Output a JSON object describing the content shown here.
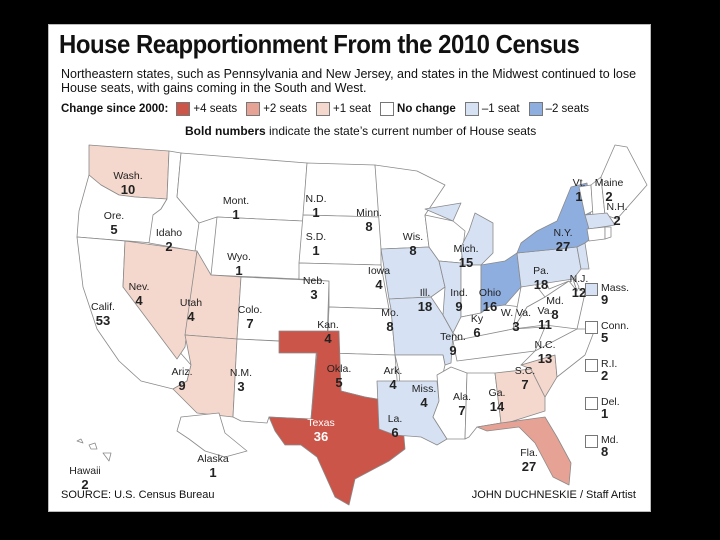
{
  "title": "House Reapportionment From the 2010 Census",
  "subtitle": "Northeastern states, such as Pennsylvania and New Jersey, and states in the Midwest continued to lose House seats, with gains coming in the South and West.",
  "legend": {
    "label": "Change since 2000:",
    "items": [
      {
        "label": "+4 seats",
        "color": "#cc5549"
      },
      {
        "label": "+2 seats",
        "color": "#e6a294"
      },
      {
        "label": "+1 seat",
        "color": "#f5d8cd"
      },
      {
        "label": "No change",
        "color": "#ffffff"
      },
      {
        "label": "–1 seat",
        "color": "#d6e2f3"
      },
      {
        "label": "–2 seats",
        "color": "#8eaee0"
      }
    ]
  },
  "bold_note": {
    "bold": "Bold numbers",
    "rest": " indicate the state’s current number of House seats"
  },
  "states": {
    "wa": {
      "name": "Wash.",
      "seats": "10",
      "change": "+1"
    },
    "or": {
      "name": "Ore.",
      "seats": "5",
      "change": "0"
    },
    "ca": {
      "name": "Calif.",
      "seats": "53",
      "change": "0"
    },
    "nv": {
      "name": "Nev.",
      "seats": "4",
      "change": "+1"
    },
    "id": {
      "name": "Idaho",
      "seats": "2",
      "change": "0"
    },
    "mt": {
      "name": "Mont.",
      "seats": "1",
      "change": "0"
    },
    "wy": {
      "name": "Wyo.",
      "seats": "1",
      "change": "0"
    },
    "ut": {
      "name": "Utah",
      "seats": "4",
      "change": "+1"
    },
    "az": {
      "name": "Ariz.",
      "seats": "9",
      "change": "+1"
    },
    "co": {
      "name": "Colo.",
      "seats": "7",
      "change": "0"
    },
    "nm": {
      "name": "N.M.",
      "seats": "3",
      "change": "0"
    },
    "nd": {
      "name": "N.D.",
      "seats": "1",
      "change": "0"
    },
    "sd": {
      "name": "S.D.",
      "seats": "1",
      "change": "0"
    },
    "ne": {
      "name": "Neb.",
      "seats": "3",
      "change": "0"
    },
    "ks": {
      "name": "Kan.",
      "seats": "4",
      "change": "0"
    },
    "ok": {
      "name": "Okla.",
      "seats": "5",
      "change": "0"
    },
    "tx": {
      "name": "Texas",
      "seats": "36",
      "change": "+4"
    },
    "mn": {
      "name": "Minn.",
      "seats": "8",
      "change": "0"
    },
    "ia": {
      "name": "Iowa",
      "seats": "4",
      "change": "-1"
    },
    "mo": {
      "name": "Mo.",
      "seats": "8",
      "change": "-1"
    },
    "ar": {
      "name": "Ark.",
      "seats": "4",
      "change": "0"
    },
    "la": {
      "name": "La.",
      "seats": "6",
      "change": "-1"
    },
    "wi": {
      "name": "Wis.",
      "seats": "8",
      "change": "0"
    },
    "il": {
      "name": "Ill.",
      "seats": "18",
      "change": "-1"
    },
    "mi": {
      "name": "Mich.",
      "seats": "15",
      "change": "-1"
    },
    "in": {
      "name": "Ind.",
      "seats": "9",
      "change": "0"
    },
    "oh": {
      "name": "Ohio",
      "seats": "16",
      "change": "-2"
    },
    "ky": {
      "name": "Ky",
      "seats": "6",
      "change": "0"
    },
    "tn": {
      "name": "Tenn.",
      "seats": "9",
      "change": "0"
    },
    "ms": {
      "name": "Miss.",
      "seats": "4",
      "change": "0"
    },
    "al": {
      "name": "Ala.",
      "seats": "7",
      "change": "0"
    },
    "ga": {
      "name": "Ga.",
      "seats": "14",
      "change": "+1"
    },
    "fl": {
      "name": "Fla.",
      "seats": "27",
      "change": "+2"
    },
    "sc": {
      "name": "S.C.",
      "seats": "7",
      "change": "+1"
    },
    "nc": {
      "name": "N.C.",
      "seats": "13",
      "change": "0"
    },
    "va": {
      "name": "Va.",
      "seats": "11",
      "change": "0"
    },
    "wv": {
      "name": "W. Va.",
      "seats": "3",
      "change": "0"
    },
    "md": {
      "name": "Md.",
      "seats": "8",
      "change": "0"
    },
    "pa": {
      "name": "Pa.",
      "seats": "18",
      "change": "-1"
    },
    "nj": {
      "name": "N.J.",
      "seats": "12",
      "change": "-1"
    },
    "ny": {
      "name": "N.Y.",
      "seats": "27",
      "change": "-2"
    },
    "vt": {
      "name": "Vt.",
      "seats": "1",
      "change": "0"
    },
    "nh": {
      "name": "N.H.",
      "seats": "2",
      "change": "0"
    },
    "me": {
      "name": "Maine",
      "seats": "2",
      "change": "0"
    },
    "ma": {
      "name": "Mass.",
      "seats": "9",
      "change": "-1"
    },
    "ct": {
      "name": "Conn.",
      "seats": "5",
      "change": "0"
    },
    "ri": {
      "name": "R.I.",
      "seats": "2",
      "change": "0"
    },
    "de": {
      "name": "Del.",
      "seats": "1",
      "change": "0"
    },
    "ak": {
      "name": "Alaska",
      "seats": "1",
      "change": "0"
    },
    "hi": {
      "name": "Hawaii",
      "seats": "2",
      "change": "0"
    }
  },
  "source": "SOURCE: U.S. Census Bureau",
  "credit": "JOHN DUCHNESKIE / Staff Artist"
}
